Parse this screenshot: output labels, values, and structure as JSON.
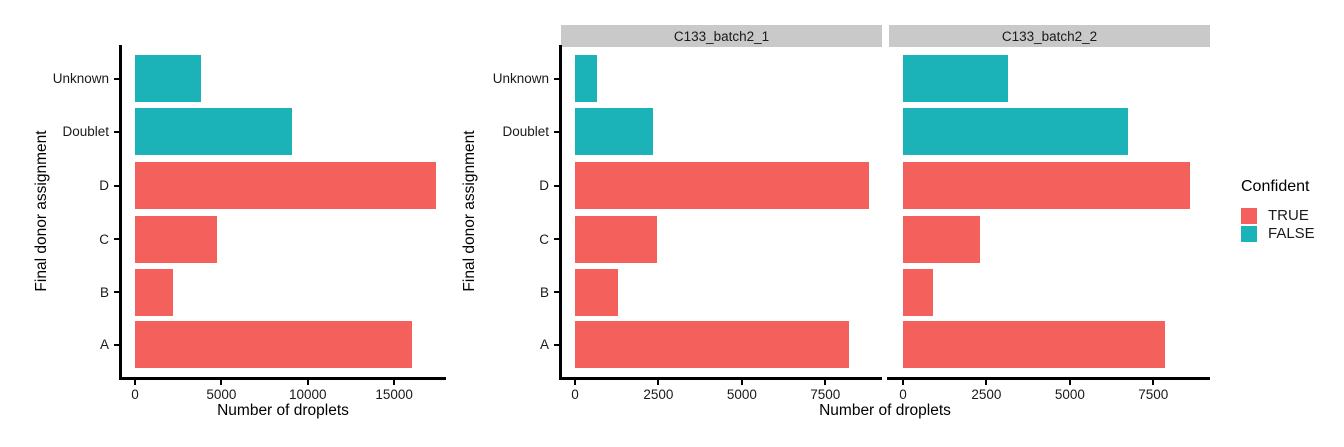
{
  "figure": {
    "description": "Faceted horizontal bar charts of droplet counts by final donor assignment, colored by confidence"
  },
  "colors": {
    "confident_true": "#F4605C",
    "confident_false": "#1BB3B7",
    "strip_bg": "#C9C9C9",
    "axis": "#000000",
    "background": "#FFFFFF"
  },
  "legend": {
    "title": "Confident",
    "position": "right",
    "items": [
      {
        "label": "TRUE",
        "color": "#F4605C"
      },
      {
        "label": "FALSE",
        "color": "#1BB3B7"
      }
    ]
  },
  "chart_data": [
    {
      "type": "bar",
      "orientation": "horizontal",
      "facet_label": null,
      "xlabel": "Number of droplets",
      "ylabel": "Final donor assignment",
      "categories": [
        "Unknown",
        "Doublet",
        "D",
        "C",
        "B",
        "A"
      ],
      "values": [
        3800,
        9100,
        17400,
        4750,
        2200,
        16050
      ],
      "confident": [
        "FALSE",
        "FALSE",
        "TRUE",
        "TRUE",
        "TRUE",
        "TRUE"
      ],
      "xticks": [
        0,
        5000,
        10000,
        15000
      ],
      "xtick_labels": [
        "0",
        "5000",
        "10000",
        "15000"
      ],
      "xlim": [
        0,
        18000
      ],
      "grid": false,
      "axis_lines": [
        "left",
        "bottom"
      ]
    },
    {
      "type": "bar",
      "orientation": "horizontal",
      "facet_label": "C133_batch2_1",
      "xlabel": "Number of droplets",
      "ylabel": "Final donor assignment",
      "categories": [
        "Unknown",
        "Doublet",
        "D",
        "C",
        "B",
        "A"
      ],
      "values": [
        650,
        2350,
        8800,
        2450,
        1300,
        8200
      ],
      "confident": [
        "FALSE",
        "FALSE",
        "TRUE",
        "TRUE",
        "TRUE",
        "TRUE"
      ],
      "xticks": [
        0,
        2500,
        5000,
        7500
      ],
      "xtick_labels": [
        "0",
        "2500",
        "5000",
        "7500"
      ],
      "xlim": [
        0,
        9200
      ],
      "grid": false,
      "axis_lines": [
        "left",
        "bottom"
      ]
    },
    {
      "type": "bar",
      "orientation": "horizontal",
      "facet_label": "C133_batch2_2",
      "xlabel": "Number of droplets",
      "ylabel": "",
      "categories": [
        "Unknown",
        "Doublet",
        "D",
        "C",
        "B",
        "A"
      ],
      "values": [
        3150,
        6750,
        8600,
        2300,
        900,
        7850
      ],
      "confident": [
        "FALSE",
        "FALSE",
        "TRUE",
        "TRUE",
        "TRUE",
        "TRUE"
      ],
      "xticks": [
        0,
        2500,
        5000,
        7500
      ],
      "xtick_labels": [
        "0",
        "2500",
        "5000",
        "7500"
      ],
      "xlim": [
        0,
        9200
      ],
      "grid": false,
      "axis_lines": [
        "bottom"
      ]
    }
  ]
}
